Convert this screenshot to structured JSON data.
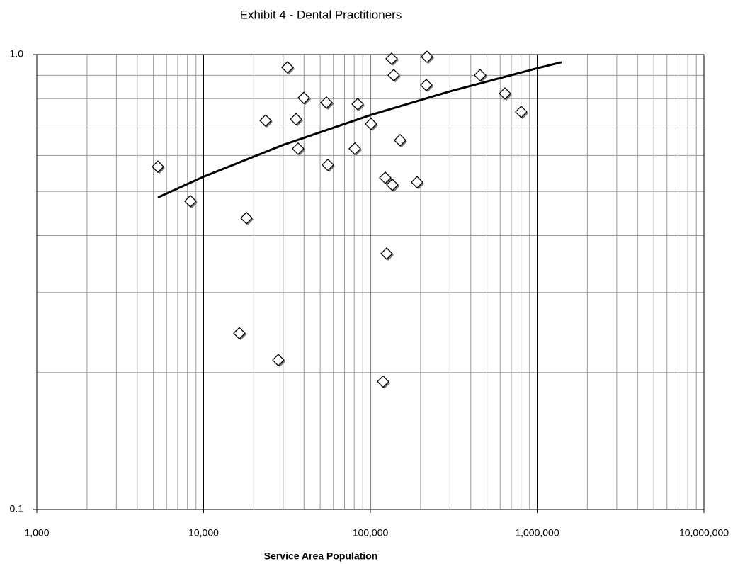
{
  "chart_data": {
    "type": "scatter",
    "title": "Exhibit 4 - Dental Practitioners",
    "xlabel": "Service Area Population",
    "xscale": "log",
    "yscale": "log",
    "grid": true,
    "minor_grid": true,
    "xlim": [
      1000,
      10000000
    ],
    "ylim": [
      0.1,
      1
    ],
    "xticks": [
      {
        "value": 1000,
        "label": "1,000"
      },
      {
        "value": 10000,
        "label": "10,000"
      },
      {
        "value": 100000,
        "label": "100,000"
      },
      {
        "value": 1000000,
        "label": "1,000,000"
      },
      {
        "value": 10000000,
        "label": "10,000,000"
      }
    ],
    "yticks": [
      0.1,
      {
        "value": 1,
        "label": "1.0"
      }
    ],
    "series": [
      {
        "type": "scatter",
        "color": "#ffffff",
        "x": [
          5320,
          8340,
          18070,
          16380,
          28050,
          23530,
          31850,
          35830,
          36880,
          39890,
          54540,
          55600,
          80660,
          83900,
          100900,
          122800,
          135500,
          119200,
          125200,
          134100,
          138100,
          150800,
          190600,
          218600,
          216500,
          455000,
          641000,
          802000
        ],
        "values": [
          0.567,
          0.476,
          0.437,
          0.244,
          0.213,
          0.716,
          0.937,
          0.721,
          0.621,
          0.803,
          0.784,
          0.572,
          0.621,
          0.778,
          0.704,
          0.536,
          0.517,
          0.191,
          0.365,
          0.979,
          0.901,
          0.648,
          0.524,
          0.989,
          0.857,
          0.901,
          0.821,
          0.748
        ]
      },
      {
        "type": "line",
        "color": "#000000",
        "x": [
          5320,
          10000,
          30000,
          100000,
          300000,
          1000000,
          1400000
        ],
        "values": [
          0.485,
          0.539,
          0.633,
          0.736,
          0.83,
          0.933,
          0.962
        ]
      }
    ]
  }
}
